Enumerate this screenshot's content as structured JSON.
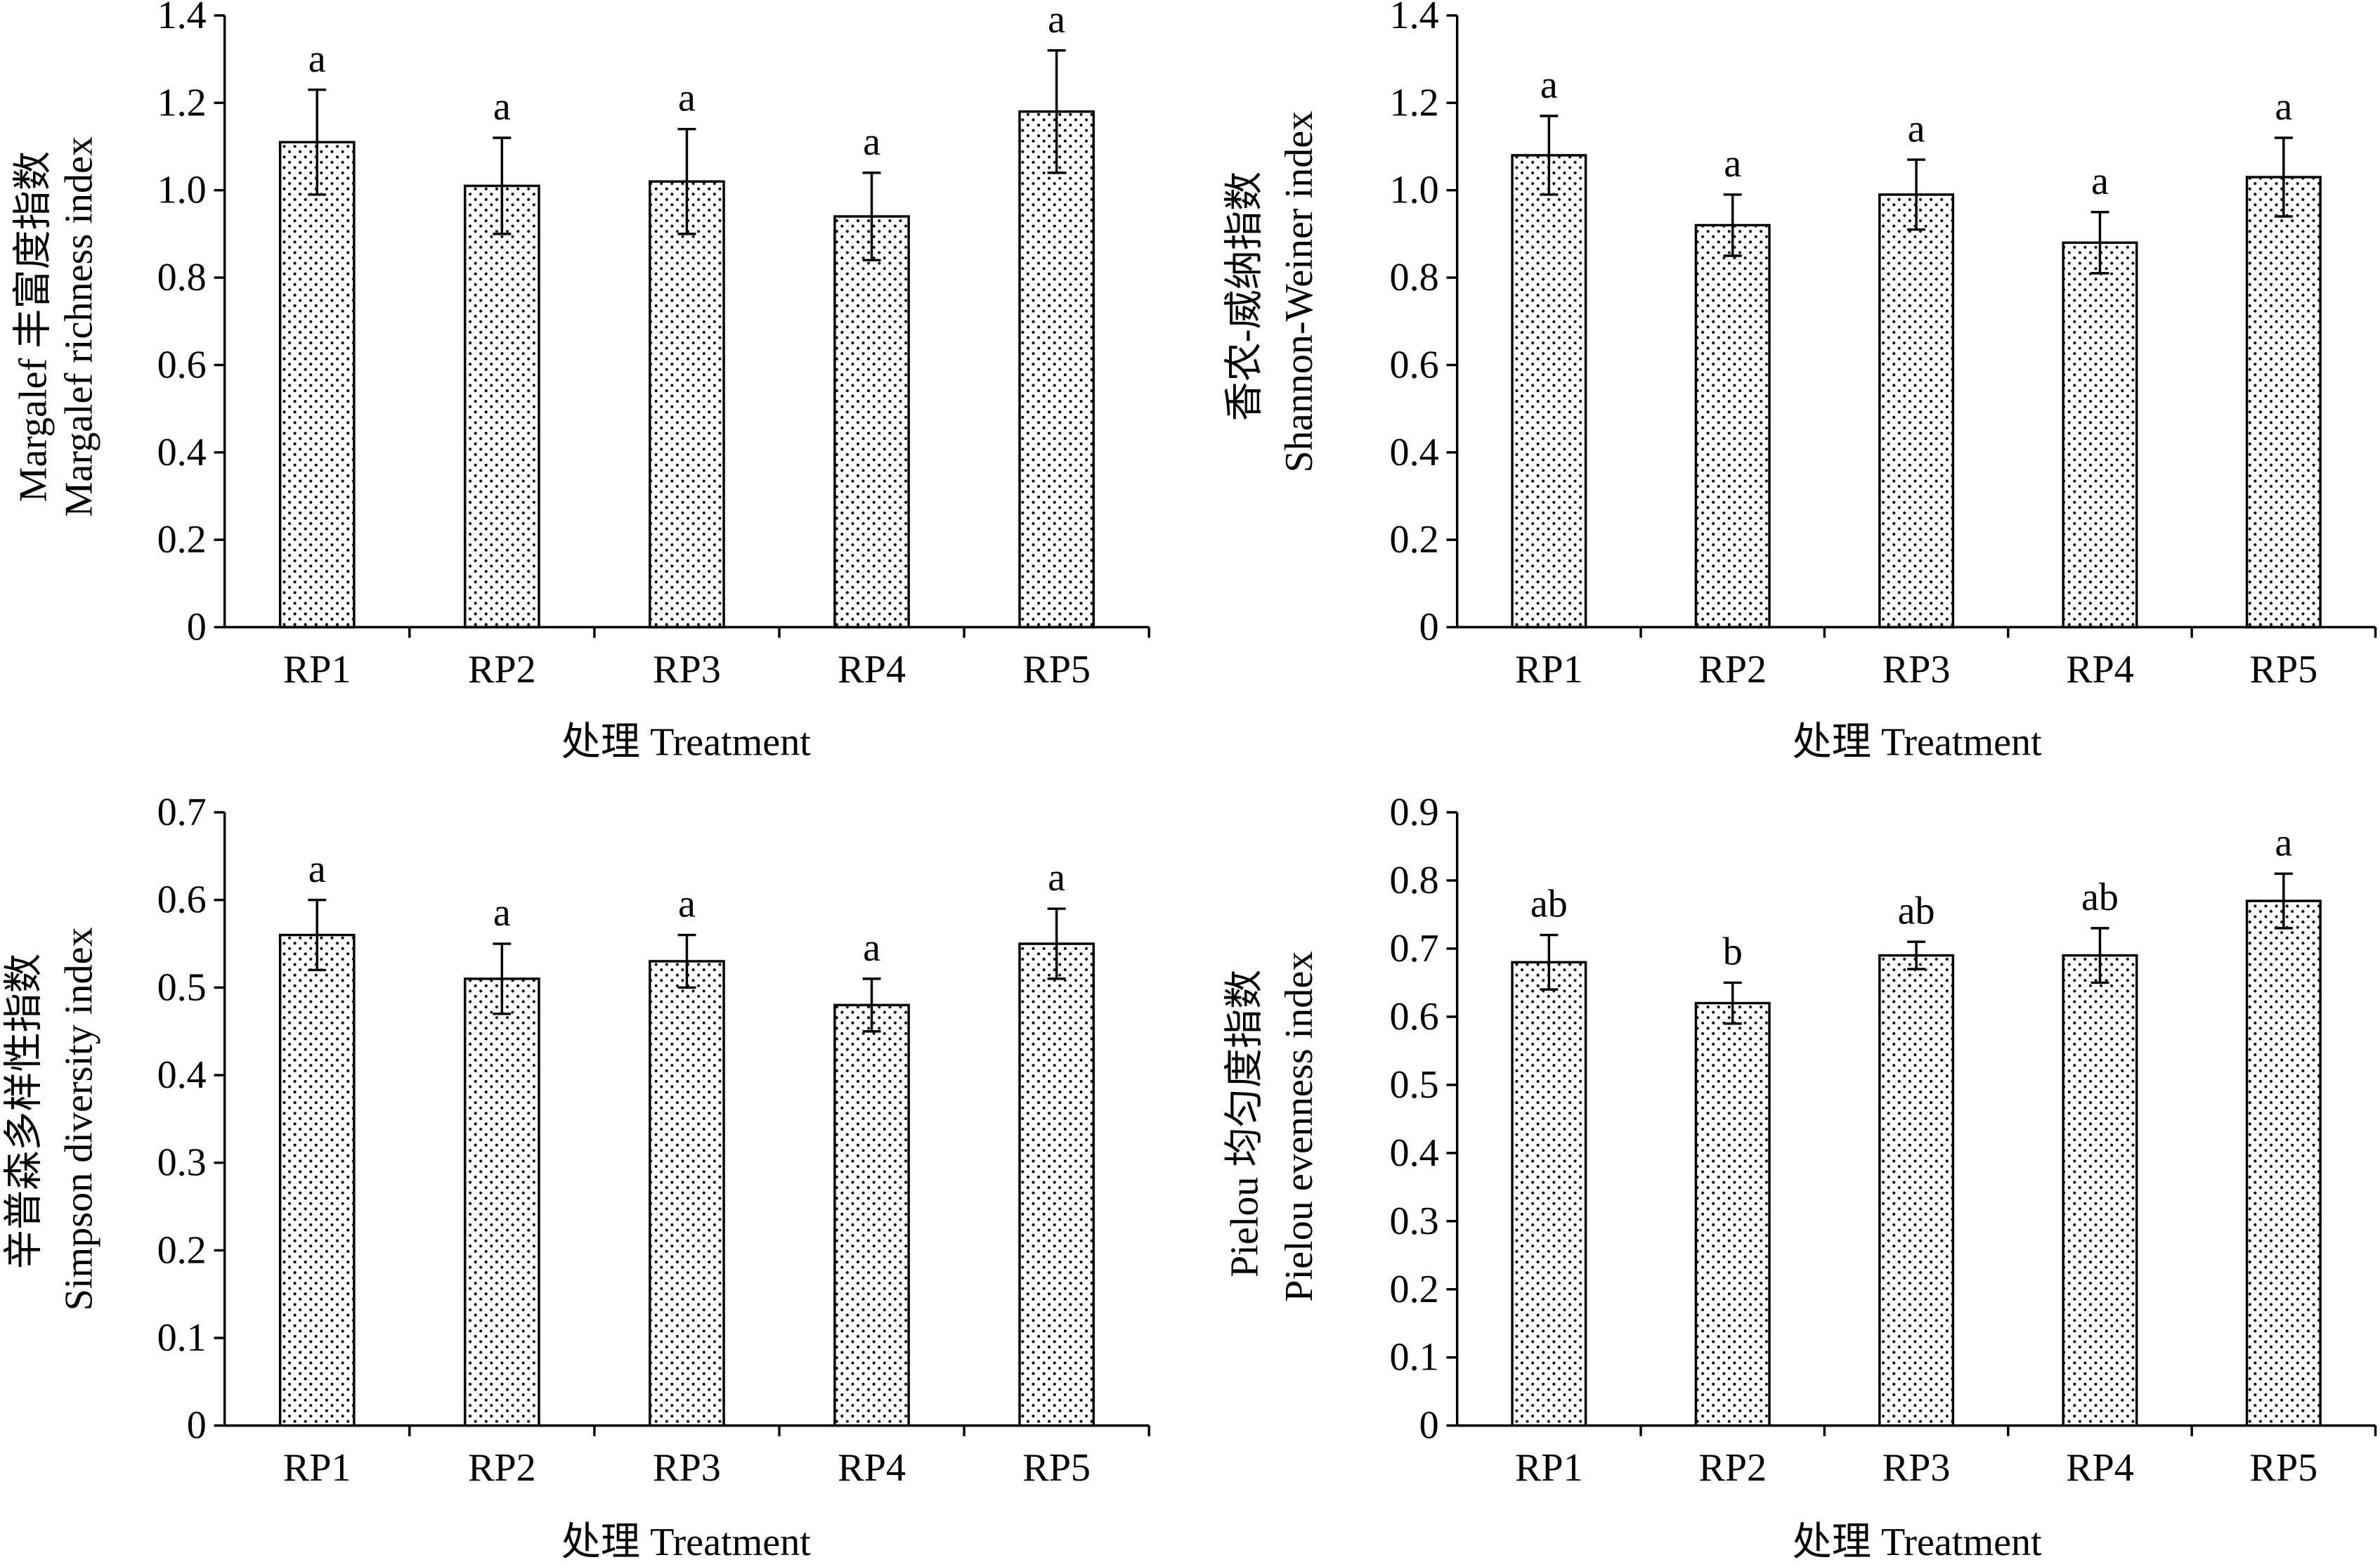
{
  "chart_data": [
    {
      "type": "bar",
      "categories": [
        "RP1",
        "RP2",
        "RP3",
        "RP4",
        "RP5"
      ],
      "values": [
        1.11,
        1.01,
        1.02,
        0.94,
        1.18
      ],
      "errors": [
        0.12,
        0.11,
        0.12,
        0.1,
        0.14
      ],
      "letters": [
        "a",
        "a",
        "a",
        "a",
        "a"
      ],
      "ylim": [
        0,
        1.4
      ],
      "yticks": [
        0,
        0.2,
        0.4,
        0.6,
        0.8,
        1.0,
        1.2,
        1.4
      ],
      "ytick_labels": [
        "0",
        "0.2",
        "0.4",
        "0.6",
        "0.8",
        "1.0",
        "1.2",
        "1.4"
      ],
      "ylabel_cn": "Margalef 丰富度指数",
      "ylabel_en": "Margalef richness index",
      "xlabel": "处理 Treatment"
    },
    {
      "type": "bar",
      "categories": [
        "RP1",
        "RP2",
        "RP3",
        "RP4",
        "RP5"
      ],
      "values": [
        1.08,
        0.92,
        0.99,
        0.88,
        1.03
      ],
      "errors": [
        0.09,
        0.07,
        0.08,
        0.07,
        0.09
      ],
      "letters": [
        "a",
        "a",
        "a",
        "a",
        "a"
      ],
      "ylim": [
        0,
        1.4
      ],
      "yticks": [
        0,
        0.2,
        0.4,
        0.6,
        0.8,
        1.0,
        1.2,
        1.4
      ],
      "ytick_labels": [
        "0",
        "0.2",
        "0.4",
        "0.6",
        "0.8",
        "1.0",
        "1.2",
        "1.4"
      ],
      "ylabel_cn": "香农-威纳指数",
      "ylabel_en": "Shannon-Weiner index",
      "xlabel": "处理 Treatment"
    },
    {
      "type": "bar",
      "categories": [
        "RP1",
        "RP2",
        "RP3",
        "RP4",
        "RP5"
      ],
      "values": [
        0.56,
        0.51,
        0.53,
        0.48,
        0.55
      ],
      "errors": [
        0.04,
        0.04,
        0.03,
        0.03,
        0.04
      ],
      "letters": [
        "a",
        "a",
        "a",
        "a",
        "a"
      ],
      "ylim": [
        0,
        0.7
      ],
      "yticks": [
        0,
        0.1,
        0.2,
        0.3,
        0.4,
        0.5,
        0.6,
        0.7
      ],
      "ytick_labels": [
        "0",
        "0.1",
        "0.2",
        "0.3",
        "0.4",
        "0.5",
        "0.6",
        "0.7"
      ],
      "ylabel_cn": "辛普森多样性指数",
      "ylabel_en": "Simpson diversity index",
      "xlabel": "处理 Treatment"
    },
    {
      "type": "bar",
      "categories": [
        "RP1",
        "RP2",
        "RP3",
        "RP4",
        "RP5"
      ],
      "values": [
        0.68,
        0.62,
        0.69,
        0.69,
        0.77
      ],
      "errors": [
        0.04,
        0.03,
        0.02,
        0.04,
        0.04
      ],
      "letters": [
        "ab",
        "b",
        "ab",
        "ab",
        "a"
      ],
      "ylim": [
        0,
        0.9
      ],
      "yticks": [
        0,
        0.1,
        0.2,
        0.3,
        0.4,
        0.5,
        0.6,
        0.7,
        0.8,
        0.9
      ],
      "ytick_labels": [
        "0",
        "0.1",
        "0.2",
        "0.3",
        "0.4",
        "0.5",
        "0.6",
        "0.7",
        "0.8",
        "0.9"
      ],
      "ylabel_cn": "Pielou 均匀度指数",
      "ylabel_en": "Pielou evenness index",
      "xlabel": "处理 Treatment"
    }
  ]
}
